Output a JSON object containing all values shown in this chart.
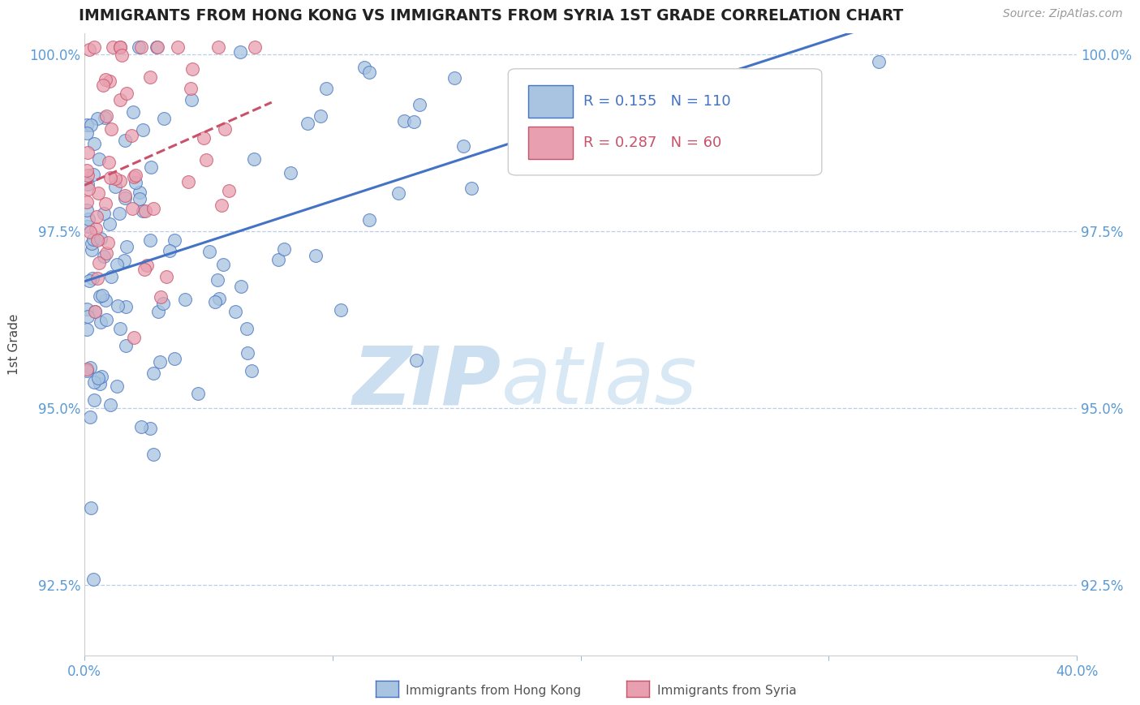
{
  "title": "IMMIGRANTS FROM HONG KONG VS IMMIGRANTS FROM SYRIA 1ST GRADE CORRELATION CHART",
  "source": "Source: ZipAtlas.com",
  "ylabel": "1st Grade",
  "legend_label1": "Immigrants from Hong Kong",
  "legend_label2": "Immigrants from Syria",
  "r1": 0.155,
  "n1": 110,
  "r2": 0.287,
  "n2": 60,
  "xlim": [
    0.0,
    0.4
  ],
  "ylim": [
    0.915,
    1.003
  ],
  "yticks": [
    0.925,
    0.95,
    0.975,
    1.0
  ],
  "ytick_labels": [
    "92.5%",
    "95.0%",
    "97.5%",
    "100.0%"
  ],
  "xticks": [
    0.0,
    0.1,
    0.2,
    0.3,
    0.4
  ],
  "xtick_labels": [
    "0.0%",
    "",
    "",
    "",
    "40.0%"
  ],
  "color_hk": "#a8c4e0",
  "color_syria": "#e8a0b0",
  "color_line_hk": "#4472c4",
  "color_line_syria": "#c9526a",
  "watermark_zip": "ZIP",
  "watermark_atlas": "atlas",
  "watermark_color_zip": "#ccdff0",
  "watermark_color_atlas": "#d8e8f5",
  "title_color": "#222222",
  "tick_color": "#5b9bd5"
}
